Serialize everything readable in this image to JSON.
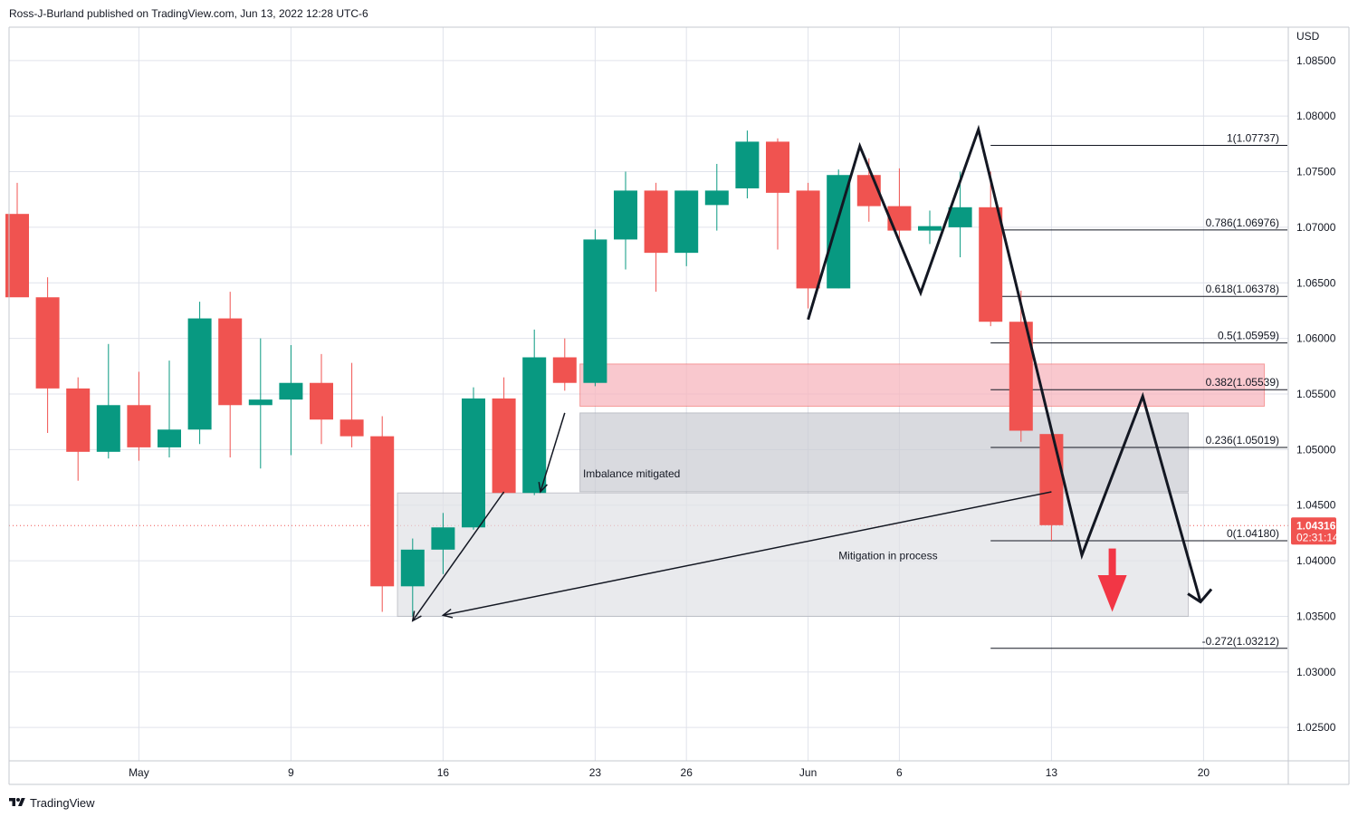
{
  "publisher": "Ross-J-Burland published on TradingView.com, Jun 13, 2022 12:28 UTC-6",
  "footer_brand": "TradingView",
  "currency_label": "USD",
  "last_price": {
    "value": "1.04316",
    "countdown": "02:31:14"
  },
  "colors": {
    "up": "#089981",
    "down": "#f05350",
    "grid": "#e0e3eb",
    "text": "#131722",
    "zone_red": "#f7b6bd",
    "zone_grey": "#c9cbd1"
  },
  "annotations": {
    "imbalance": "Imbalance mitigated",
    "mitigation": "Mitigation in process"
  },
  "chart_data": {
    "type": "candlestick",
    "symbol_currency": "USD",
    "ylim": [
      1.022,
      1.088
    ],
    "y_ticks": [
      "1.02500",
      "1.03000",
      "1.03500",
      "1.04000",
      "1.04500",
      "1.05000",
      "1.05500",
      "1.06000",
      "1.06500",
      "1.07000",
      "1.07500",
      "1.08000",
      "1.08500"
    ],
    "x_ticks": [
      {
        "label": "May",
        "idx": 4
      },
      {
        "label": "9",
        "idx": 9
      },
      {
        "label": "16",
        "idx": 14
      },
      {
        "label": "23",
        "idx": 19
      },
      {
        "label": "26",
        "idx": 22
      },
      {
        "label": "Jun",
        "idx": 26
      },
      {
        "label": "6",
        "idx": 29
      },
      {
        "label": "13",
        "idx": 34
      },
      {
        "label": "20",
        "idx": 39
      }
    ],
    "candles": [
      {
        "o": 1.0712,
        "h": 1.074,
        "l": 1.064,
        "c": 1.0637
      },
      {
        "o": 1.0637,
        "h": 1.0655,
        "l": 1.0515,
        "c": 1.0555
      },
      {
        "o": 1.0555,
        "h": 1.0565,
        "l": 1.0472,
        "c": 1.0498
      },
      {
        "o": 1.0498,
        "h": 1.0595,
        "l": 1.0492,
        "c": 1.054
      },
      {
        "o": 1.054,
        "h": 1.057,
        "l": 1.049,
        "c": 1.0502
      },
      {
        "o": 1.0502,
        "h": 1.058,
        "l": 1.0493,
        "c": 1.0518
      },
      {
        "o": 1.0518,
        "h": 1.0633,
        "l": 1.0505,
        "c": 1.0618
      },
      {
        "o": 1.0618,
        "h": 1.0642,
        "l": 1.0493,
        "c": 1.054
      },
      {
        "o": 1.054,
        "h": 1.06,
        "l": 1.0483,
        "c": 1.0545
      },
      {
        "o": 1.0545,
        "h": 1.0594,
        "l": 1.0495,
        "c": 1.056
      },
      {
        "o": 1.056,
        "h": 1.0586,
        "l": 1.0505,
        "c": 1.0527
      },
      {
        "o": 1.0527,
        "h": 1.0578,
        "l": 1.0502,
        "c": 1.0512
      },
      {
        "o": 1.0512,
        "h": 1.053,
        "l": 1.0354,
        "c": 1.0377
      },
      {
        "o": 1.0377,
        "h": 1.042,
        "l": 1.035,
        "c": 1.041
      },
      {
        "o": 1.041,
        "h": 1.0443,
        "l": 1.0388,
        "c": 1.043
      },
      {
        "o": 1.043,
        "h": 1.0556,
        "l": 1.0428,
        "c": 1.0546
      },
      {
        "o": 1.0546,
        "h": 1.0565,
        "l": 1.046,
        "c": 1.0461
      },
      {
        "o": 1.0461,
        "h": 1.0608,
        "l": 1.0459,
        "c": 1.0583
      },
      {
        "o": 1.0583,
        "h": 1.06,
        "l": 1.0553,
        "c": 1.056
      },
      {
        "o": 1.056,
        "h": 1.0698,
        "l": 1.0557,
        "c": 1.0689
      },
      {
        "o": 1.0689,
        "h": 1.075,
        "l": 1.0662,
        "c": 1.0733
      },
      {
        "o": 1.0733,
        "h": 1.074,
        "l": 1.0642,
        "c": 1.0677
      },
      {
        "o": 1.0677,
        "h": 1.0733,
        "l": 1.0665,
        "c": 1.0733
      },
      {
        "o": 1.072,
        "h": 1.0757,
        "l": 1.0697,
        "c": 1.0733
      },
      {
        "o": 1.0735,
        "h": 1.0787,
        "l": 1.0726,
        "c": 1.0777
      },
      {
        "o": 1.0777,
        "h": 1.078,
        "l": 1.068,
        "c": 1.0731
      },
      {
        "o": 1.0733,
        "h": 1.074,
        "l": 1.0627,
        "c": 1.0645
      },
      {
        "o": 1.0645,
        "h": 1.0752,
        "l": 1.0645,
        "c": 1.0747
      },
      {
        "o": 1.0747,
        "h": 1.0762,
        "l": 1.0705,
        "c": 1.0719
      },
      {
        "o": 1.0719,
        "h": 1.0753,
        "l": 1.0685,
        "c": 1.0697
      },
      {
        "o": 1.0697,
        "h": 1.0715,
        "l": 1.0685,
        "c": 1.0701
      },
      {
        "o": 1.07,
        "h": 1.075,
        "l": 1.0673,
        "c": 1.0718
      },
      {
        "o": 1.0718,
        "h": 1.075,
        "l": 1.0611,
        "c": 1.0615
      },
      {
        "o": 1.0615,
        "h": 1.0643,
        "l": 1.0507,
        "c": 1.0517
      },
      {
        "o": 1.0514,
        "h": 1.052,
        "l": 1.0418,
        "c": 1.0432
      }
    ],
    "fib_levels": [
      {
        "label": "1(1.07737)",
        "price": 1.07737
      },
      {
        "label": "0.786(1.06976)",
        "price": 1.06976
      },
      {
        "label": "0.618(1.06378)",
        "price": 1.06378
      },
      {
        "label": "0.5(1.05959)",
        "price": 1.05959
      },
      {
        "label": "0.382(1.05539)",
        "price": 1.05539
      },
      {
        "label": "0.236(1.05019)",
        "price": 1.05019
      },
      {
        "label": "0(1.04180)",
        "price": 1.0418
      },
      {
        "label": "-0.272(1.03212)",
        "price": 1.03212
      }
    ],
    "zones": [
      {
        "name": "supply-zone",
        "y1": 1.0577,
        "y2": 1.0539,
        "x1": 18.5,
        "x2": 41.0,
        "color": "red"
      },
      {
        "name": "imbalance-zone",
        "y1": 1.0533,
        "y2": 1.0462,
        "x1": 18.5,
        "x2": 38.5,
        "color": "grey"
      },
      {
        "name": "mitigation-zone",
        "y1": 1.0461,
        "y2": 1.035,
        "x1": 12.5,
        "x2": 38.5,
        "color": "lightgrey"
      }
    ],
    "pattern_path": [
      [
        26.0,
        1.0617
      ],
      [
        27.7,
        1.0773
      ],
      [
        29.7,
        1.0641
      ],
      [
        31.6,
        1.0788
      ],
      [
        35.0,
        1.0405
      ],
      [
        37.0,
        1.0548
      ],
      [
        38.9,
        1.0363
      ]
    ],
    "arrow_target_price": 1.0365,
    "arrow_target_idx": 39.0
  }
}
